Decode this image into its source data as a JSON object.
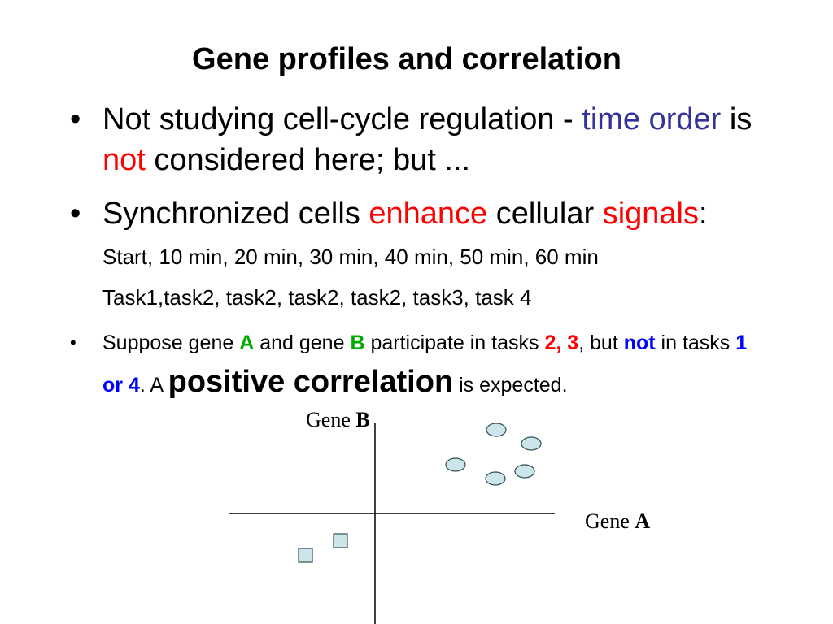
{
  "title": "Gene profiles and correlation",
  "bullet_glyph": "•",
  "bullets": {
    "b1": {
      "t1": "Not studying cell-cycle regulation - ",
      "t2": "time order",
      "t3": " is ",
      "t4": "not",
      "t5": " considered here; but ..."
    },
    "b2": {
      "t1": "Synchronized cells ",
      "t2": "enhance",
      "t3": " cellular ",
      "t4": "signals",
      "t5": ": ",
      "t6": "Start, 10 min, 20 min, 30 min, 40 min, 50 min, 60 min",
      "t7": "Task1,task2,   task2,  task2, task2, task3, task 4"
    },
    "b3": {
      "t1": "Suppose gene ",
      "t2": "A",
      "t3": " and gene ",
      "t4": "B",
      "t5": " participate in tasks ",
      "t6": "2, 3",
      "t7": ", but ",
      "t8": "not",
      "t9": " in tasks ",
      "t10": "1 or 4",
      "t11": ". A ",
      "t12": "positive correlation",
      "t13": " is expected."
    }
  },
  "plot": {
    "gene_b_label": {
      "text": "Gene ",
      "bold": "B"
    },
    "gene_a_label": {
      "text": "Gene ",
      "bold": "A"
    },
    "colors": {
      "marker_fill": "#cce5ea",
      "marker_stroke": "#2f4f4f",
      "axis": "#000000"
    }
  }
}
